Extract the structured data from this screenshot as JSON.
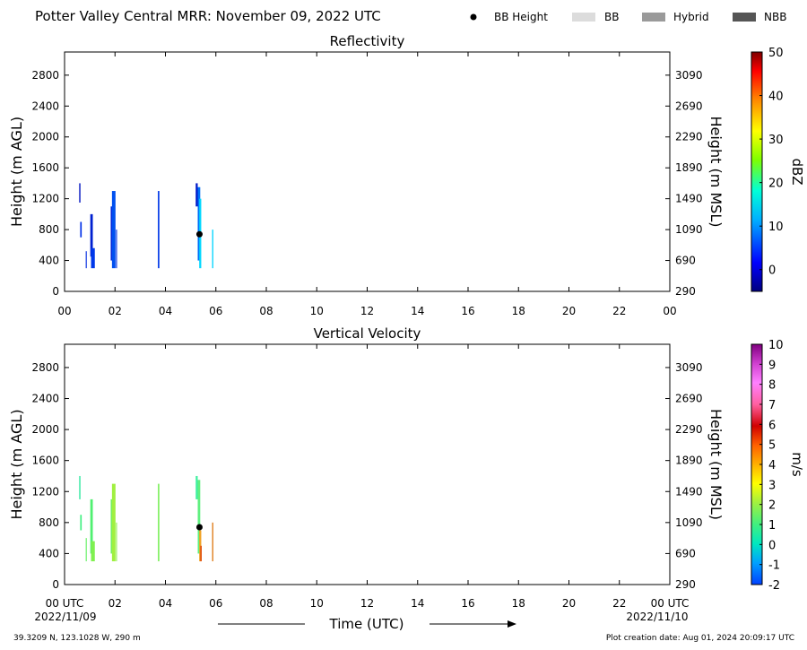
{
  "header": {
    "title": "Potter Valley Central MRR:  November 09, 2022 UTC",
    "legend": [
      {
        "label": "BB Height",
        "kind": "dot",
        "color": "#000000"
      },
      {
        "label": "BB",
        "kind": "swatch",
        "color": "#dcdcdc"
      },
      {
        "label": "Hybrid",
        "kind": "swatch",
        "color": "#9a9a9a"
      },
      {
        "label": "NBB",
        "kind": "swatch",
        "color": "#555555"
      }
    ]
  },
  "footer": {
    "location": "39.3209 N, 123.1028 W, 290 m",
    "creation": "Plot creation date: Aug 01, 2024 20:09:17 UTC",
    "xlabel": "Time (UTC)",
    "start_date": "2022/11/09",
    "end_date": "2022/11/10"
  },
  "chart_data": [
    {
      "type": "heatmap",
      "title": "Reflectivity",
      "ylabel": "Height (m AGL)",
      "ylabel_right": "Height (m MSL)",
      "xlim": [
        0,
        24
      ],
      "ylim": [
        0,
        3100
      ],
      "x_ticks": [
        "00",
        "02",
        "04",
        "06",
        "08",
        "10",
        "12",
        "14",
        "16",
        "18",
        "20",
        "22",
        "00"
      ],
      "y_ticks": [
        0,
        400,
        800,
        1200,
        1600,
        2000,
        2400,
        2800
      ],
      "y_ticks_right": [
        290,
        690,
        1090,
        1490,
        1890,
        2290,
        2690,
        3090
      ],
      "colorbar": {
        "label": "dBZ",
        "range": [
          -5,
          50
        ],
        "ticks": [
          0,
          10,
          20,
          30,
          40,
          50
        ]
      },
      "bb_height": {
        "x": 5.35,
        "y": 740
      },
      "columns": [
        {
          "x0": 0.58,
          "x1": 0.63,
          "y0": 1150,
          "y1": 1400,
          "color": "#0014c0"
        },
        {
          "x0": 0.62,
          "x1": 0.68,
          "y0": 700,
          "y1": 900,
          "color": "#0030e8"
        },
        {
          "x0": 0.84,
          "x1": 0.88,
          "y0": 300,
          "y1": 520,
          "color": "#0028e0"
        },
        {
          "x0": 1.02,
          "x1": 1.12,
          "y0": 450,
          "y1": 1000,
          "color": "#0020d0"
        },
        {
          "x0": 1.05,
          "x1": 1.2,
          "y0": 300,
          "y1": 560,
          "color": "#0038ea"
        },
        {
          "x0": 1.83,
          "x1": 1.92,
          "y0": 400,
          "y1": 1100,
          "color": "#0024d8"
        },
        {
          "x0": 1.88,
          "x1": 2.02,
          "y0": 300,
          "y1": 1300,
          "color": "#0050f0"
        },
        {
          "x0": 2.04,
          "x1": 2.08,
          "y0": 300,
          "y1": 800,
          "color": "#0030e0"
        },
        {
          "x0": 3.7,
          "x1": 3.76,
          "y0": 300,
          "y1": 1300,
          "color": "#0038e8"
        },
        {
          "x0": 5.2,
          "x1": 5.28,
          "y0": 1100,
          "y1": 1400,
          "color": "#0018c8"
        },
        {
          "x0": 5.28,
          "x1": 5.38,
          "y0": 400,
          "y1": 1350,
          "color": "#0070f8"
        },
        {
          "x0": 5.34,
          "x1": 5.42,
          "y0": 300,
          "y1": 1200,
          "color": "#00d8ff"
        },
        {
          "x0": 5.85,
          "x1": 5.9,
          "y0": 300,
          "y1": 800,
          "color": "#10d8ff"
        }
      ]
    },
    {
      "type": "heatmap",
      "title": "Vertical Velocity",
      "ylabel": "Height (m AGL)",
      "ylabel_right": "Height (m MSL)",
      "xlim": [
        0,
        24
      ],
      "ylim": [
        0,
        3100
      ],
      "x_ticks": [
        "00 UTC",
        "02",
        "04",
        "06",
        "08",
        "10",
        "12",
        "14",
        "16",
        "18",
        "20",
        "22",
        "00 UTC"
      ],
      "y_ticks": [
        0,
        400,
        800,
        1200,
        1600,
        2000,
        2400,
        2800
      ],
      "y_ticks_right": [
        290,
        690,
        1090,
        1490,
        1890,
        2290,
        2690,
        3090
      ],
      "colorbar": {
        "label": "m/s",
        "range": [
          -2,
          10
        ],
        "ticks": [
          -2,
          -1,
          0,
          1,
          2,
          3,
          4,
          5,
          6,
          7,
          8,
          9,
          10
        ]
      },
      "bb_height": {
        "x": 5.35,
        "y": 740
      },
      "columns": [
        {
          "x0": 0.58,
          "x1": 0.63,
          "y0": 1100,
          "y1": 1400,
          "color": "#30e8a0"
        },
        {
          "x0": 0.62,
          "x1": 0.68,
          "y0": 700,
          "y1": 900,
          "color": "#40f080"
        },
        {
          "x0": 0.84,
          "x1": 0.88,
          "y0": 300,
          "y1": 600,
          "color": "#60f060"
        },
        {
          "x0": 1.02,
          "x1": 1.12,
          "y0": 400,
          "y1": 1100,
          "color": "#50f070"
        },
        {
          "x0": 1.05,
          "x1": 1.2,
          "y0": 300,
          "y1": 560,
          "color": "#80f050"
        },
        {
          "x0": 1.83,
          "x1": 1.92,
          "y0": 400,
          "y1": 1100,
          "color": "#70f060"
        },
        {
          "x0": 1.88,
          "x1": 2.02,
          "y0": 300,
          "y1": 1300,
          "color": "#a0f040"
        },
        {
          "x0": 2.04,
          "x1": 2.08,
          "y0": 300,
          "y1": 800,
          "color": "#90f050"
        },
        {
          "x0": 3.7,
          "x1": 3.76,
          "y0": 300,
          "y1": 1300,
          "color": "#80f060"
        },
        {
          "x0": 5.2,
          "x1": 5.28,
          "y0": 1100,
          "y1": 1400,
          "color": "#40f0a0"
        },
        {
          "x0": 5.28,
          "x1": 5.38,
          "y0": 400,
          "y1": 1350,
          "color": "#60f080"
        },
        {
          "x0": 5.34,
          "x1": 5.42,
          "y0": 300,
          "y1": 700,
          "color": "#f0a020"
        },
        {
          "x0": 5.38,
          "x1": 5.44,
          "y0": 300,
          "y1": 500,
          "color": "#e05010"
        },
        {
          "x0": 5.85,
          "x1": 5.9,
          "y0": 300,
          "y1": 800,
          "color": "#e08020"
        }
      ]
    }
  ]
}
